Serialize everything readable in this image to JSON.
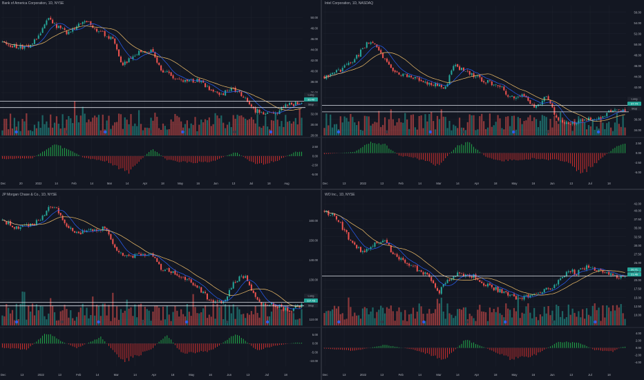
{
  "colors": {
    "background": "#131722",
    "grid": "#1e222d",
    "up": "#26a69a",
    "down": "#ef5350",
    "ma_fast": "#2962ff",
    "ma_slow": "#f5c26b",
    "text": "#b2b5be",
    "hline": "#e0e3eb",
    "badge": "#26a69a",
    "event": "#2962ff"
  },
  "chart_data": [
    {
      "type": "candlestick",
      "title": "Bank of America Corporation, 1D, NYSE",
      "ylim": [
        28,
        52
      ],
      "y_ticks": [
        "50.00",
        "48.00",
        "46.00",
        "44.00",
        "42.00",
        "40.00",
        "38.00",
        "36.00",
        "34.00",
        "32.00",
        "30.00",
        "28.00"
      ],
      "x_ticks": [
        "Dec",
        "20",
        "2022",
        "14",
        "Feb",
        "14",
        "Mar",
        "14",
        "Apr",
        "18",
        "May",
        "16",
        "Jun",
        "13",
        "Jul",
        "18",
        "Aug"
      ],
      "price_path": [
        [
          0,
          45.5
        ],
        [
          0.04,
          44.7
        ],
        [
          0.09,
          44.3
        ],
        [
          0.13,
          47.5
        ],
        [
          0.15,
          49.8
        ],
        [
          0.18,
          48.3
        ],
        [
          0.22,
          47.1
        ],
        [
          0.26,
          48.9
        ],
        [
          0.28,
          49.3
        ],
        [
          0.33,
          47.2
        ],
        [
          0.37,
          45.9
        ],
        [
          0.4,
          41.2
        ],
        [
          0.43,
          42.5
        ],
        [
          0.46,
          43.6
        ],
        [
          0.5,
          43.9
        ],
        [
          0.53,
          40.4
        ],
        [
          0.58,
          38.6
        ],
        [
          0.6,
          37.9
        ],
        [
          0.66,
          38.4
        ],
        [
          0.7,
          36.1
        ],
        [
          0.74,
          35.9
        ],
        [
          0.77,
          36.7
        ],
        [
          0.8,
          35.4
        ],
        [
          0.84,
          32.8
        ],
        [
          0.88,
          31.9
        ],
        [
          0.92,
          32.4
        ],
        [
          0.95,
          33.9
        ]
      ],
      "h_lines": [
        34.4,
        33.2
      ],
      "price_labels": [
        "Long",
        "33.40",
        "Stop"
      ],
      "sub_ticks": [
        "5.00",
        "2.50",
        "0.00",
        "-2.50",
        "-5.00"
      ],
      "sub_range": [
        -5.5,
        4.5
      ],
      "sub_path": [
        [
          0,
          -0.8
        ],
        [
          0.1,
          -0.6
        ],
        [
          0.17,
          3.0
        ],
        [
          0.22,
          2.0
        ],
        [
          0.27,
          -0.4
        ],
        [
          0.35,
          -1.5
        ],
        [
          0.42,
          -4.5
        ],
        [
          0.5,
          2.0
        ],
        [
          0.55,
          -1.0
        ],
        [
          0.62,
          -1.8
        ],
        [
          0.7,
          -1.5
        ],
        [
          0.78,
          1.1
        ],
        [
          0.85,
          -2.5
        ],
        [
          0.92,
          -1.2
        ],
        [
          0.98,
          1.2
        ]
      ]
    },
    {
      "type": "candlestick",
      "title": "Intel Corporation, 1D, NASDAQ",
      "ylim": [
        33,
        57
      ],
      "y_ticks": [
        "56.00",
        "54.00",
        "52.00",
        "50.00",
        "48.00",
        "46.00",
        "44.00",
        "42.00",
        "40.00",
        "38.00",
        "36.00",
        "34.00"
      ],
      "x_ticks": [
        "Dec",
        "13",
        "2022",
        "13",
        "Feb",
        "14",
        "Mar",
        "14",
        "Apr",
        "18",
        "May",
        "16",
        "Jun",
        "13",
        "Jul",
        "18"
      ],
      "price_path": [
        [
          0,
          44.0
        ],
        [
          0.04,
          44.8
        ],
        [
          0.09,
          46.5
        ],
        [
          0.13,
          49.3
        ],
        [
          0.15,
          50.7
        ],
        [
          0.18,
          48.9
        ],
        [
          0.22,
          45.6
        ],
        [
          0.26,
          44.4
        ],
        [
          0.3,
          43.8
        ],
        [
          0.33,
          42.6
        ],
        [
          0.37,
          42.7
        ],
        [
          0.4,
          41.6
        ],
        [
          0.43,
          46.1
        ],
        [
          0.46,
          45.3
        ],
        [
          0.5,
          44.1
        ],
        [
          0.53,
          43.2
        ],
        [
          0.58,
          42.4
        ],
        [
          0.62,
          40.1
        ],
        [
          0.66,
          40.7
        ],
        [
          0.7,
          37.9
        ],
        [
          0.74,
          40.6
        ],
        [
          0.77,
          36.5
        ],
        [
          0.8,
          35.1
        ],
        [
          0.84,
          35.5
        ],
        [
          0.88,
          36.3
        ],
        [
          0.92,
          36.1
        ],
        [
          0.95,
          37.6
        ]
      ],
      "h_lines": [
        38.6,
        37.4
      ],
      "price_labels": [
        "Long",
        "37.74",
        "Stop"
      ],
      "sub_ticks": [
        "2.50",
        "0.00",
        "-2.50",
        "-5.00"
      ],
      "sub_range": [
        -6,
        3.5
      ],
      "sub_path": [
        [
          0,
          -0.3
        ],
        [
          0.1,
          0.3
        ],
        [
          0.15,
          2.7
        ],
        [
          0.2,
          2.2
        ],
        [
          0.25,
          -0.7
        ],
        [
          0.3,
          -1.2
        ],
        [
          0.38,
          -3.2
        ],
        [
          0.44,
          1.8
        ],
        [
          0.48,
          2.7
        ],
        [
          0.54,
          -1.1
        ],
        [
          0.6,
          -2.0
        ],
        [
          0.7,
          -1.4
        ],
        [
          0.8,
          -2.1
        ],
        [
          0.86,
          -5.2
        ],
        [
          0.93,
          -0.8
        ],
        [
          0.98,
          2.2
        ]
      ]
    },
    {
      "type": "candlestick",
      "title": "JP Morgan Chase & Co., 1D, NYSE",
      "ylim": [
        107,
        172
      ],
      "y_ticks": [
        "160.00",
        "150.00",
        "140.00",
        "130.00",
        "120.00",
        "110.00"
      ],
      "x_ticks": [
        "Dec",
        "13",
        "2022",
        "13",
        "Feb",
        "14",
        "Mar",
        "14",
        "Apr",
        "18",
        "May",
        "16",
        "Jun",
        "13",
        "Jul",
        "18"
      ],
      "price_path": [
        [
          0,
          160
        ],
        [
          0.04,
          157
        ],
        [
          0.09,
          157
        ],
        [
          0.13,
          161
        ],
        [
          0.16,
          167
        ],
        [
          0.18,
          166
        ],
        [
          0.21,
          158
        ],
        [
          0.24,
          154
        ],
        [
          0.28,
          154
        ],
        [
          0.32,
          156
        ],
        [
          0.35,
          156
        ],
        [
          0.38,
          144
        ],
        [
          0.43,
          142
        ],
        [
          0.46,
          143
        ],
        [
          0.5,
          143
        ],
        [
          0.53,
          136
        ],
        [
          0.57,
          134
        ],
        [
          0.6,
          132
        ],
        [
          0.64,
          128
        ],
        [
          0.7,
          119
        ],
        [
          0.74,
          119
        ],
        [
          0.78,
          130
        ],
        [
          0.81,
          132
        ],
        [
          0.83,
          125
        ],
        [
          0.87,
          117
        ],
        [
          0.9,
          118
        ],
        [
          0.93,
          116
        ],
        [
          0.96,
          114
        ],
        [
          0.98,
          117
        ]
      ],
      "h_lines": [
        118.7,
        116.9
      ],
      "price_labels": [
        "Long",
        "117.43",
        "Stop"
      ],
      "sub_ticks": [
        "10.00",
        "5.00",
        "0.00",
        "-5.00",
        "-10.00"
      ],
      "sub_range": [
        -13,
        8
      ],
      "sub_path": [
        [
          0,
          -2.5
        ],
        [
          0.08,
          -3.5
        ],
        [
          0.15,
          6.2
        ],
        [
          0.2,
          1.0
        ],
        [
          0.25,
          -2.5
        ],
        [
          0.33,
          3.8
        ],
        [
          0.4,
          -10.8
        ],
        [
          0.5,
          -3.0
        ],
        [
          0.55,
          5.3
        ],
        [
          0.6,
          -6.2
        ],
        [
          0.7,
          -4.0
        ],
        [
          0.78,
          5.7
        ],
        [
          0.85,
          -3.7
        ],
        [
          0.92,
          -1.0
        ],
        [
          0.98,
          0.5
        ]
      ]
    },
    {
      "type": "candlestick",
      "title": "WO Inc., 1D, NYSE",
      "ylim": [
        7,
        44
      ],
      "y_ticks": [
        "42.00",
        "40.00",
        "37.50",
        "35.00",
        "32.50",
        "30.00",
        "27.50",
        "25.00",
        "22.50",
        "20.00",
        "17.50",
        "15.00",
        "12.50",
        "10.00"
      ],
      "x_ticks": [
        "Dec",
        "13",
        "2022",
        "13",
        "Feb",
        "14",
        "Mar",
        "14",
        "Apr",
        "18",
        "May",
        "16",
        "Jun",
        "13",
        "Jul",
        "18"
      ],
      "price_path": [
        [
          0,
          40
        ],
        [
          0.04,
          38
        ],
        [
          0.09,
          31
        ],
        [
          0.13,
          28
        ],
        [
          0.16,
          30
        ],
        [
          0.2,
          32
        ],
        [
          0.23,
          27
        ],
        [
          0.26,
          26
        ],
        [
          0.31,
          23
        ],
        [
          0.35,
          21
        ],
        [
          0.38,
          16.5
        ],
        [
          0.41,
          20
        ],
        [
          0.45,
          22
        ],
        [
          0.5,
          21
        ],
        [
          0.53,
          19
        ],
        [
          0.57,
          17.5
        ],
        [
          0.61,
          16
        ],
        [
          0.65,
          14.5
        ],
        [
          0.7,
          16
        ],
        [
          0.74,
          17.5
        ],
        [
          0.77,
          18.5
        ],
        [
          0.81,
          23
        ],
        [
          0.84,
          22
        ],
        [
          0.87,
          24
        ],
        [
          0.91,
          23
        ],
        [
          0.95,
          22
        ],
        [
          0.98,
          21
        ]
      ],
      "h_lines": [
        21.2
      ],
      "price_labels": [
        "20.71",
        "21.46"
      ],
      "sub_ticks": [
        "4.00",
        "2.00",
        "0.00",
        "-2.00",
        "-4.00"
      ],
      "sub_range": [
        -5,
        5
      ],
      "sub_path": [
        [
          0,
          -0.2
        ],
        [
          0.1,
          -0.8
        ],
        [
          0.2,
          0.8
        ],
        [
          0.3,
          -0.5
        ],
        [
          0.4,
          -3.2
        ],
        [
          0.47,
          2.3
        ],
        [
          0.55,
          -0.5
        ],
        [
          0.62,
          -3.0
        ],
        [
          0.7,
          -2.0
        ],
        [
          0.78,
          1.8
        ],
        [
          0.85,
          1.3
        ],
        [
          0.9,
          -0.6
        ],
        [
          0.96,
          -1.0
        ],
        [
          0.99,
          0.3
        ]
      ]
    }
  ]
}
